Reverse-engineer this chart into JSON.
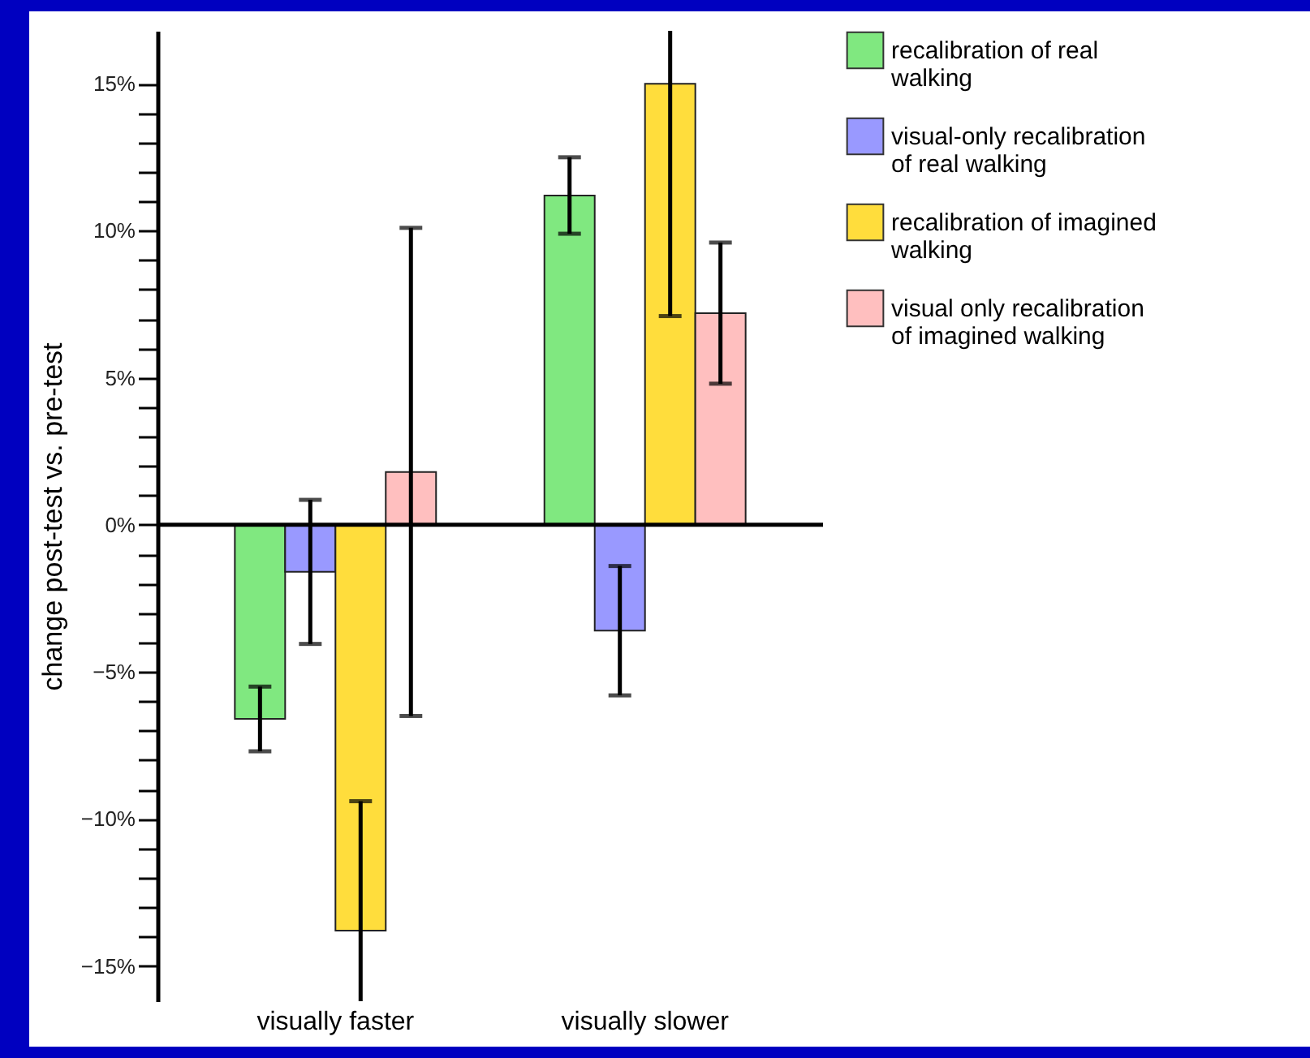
{
  "chart_data": {
    "type": "bar",
    "ylabel": "change post-test vs. pre-test",
    "categories": [
      "visually faster",
      "visually slower"
    ],
    "series": [
      {
        "name": "recalibration of real walking",
        "color": "#80e880",
        "values": [
          -6.6,
          11.2
        ],
        "errors": [
          1.1,
          1.3
        ]
      },
      {
        "name": "visual-only recalibration of real walking",
        "color": "#9999ff",
        "values": [
          -1.6,
          -3.6
        ],
        "errors": [
          2.45,
          2.2
        ]
      },
      {
        "name": "recalibration of imagined walking",
        "color": "#ffdd3c",
        "values": [
          -13.8,
          15
        ],
        "errors": [
          [
            -16.2,
            -9.4
          ],
          [
            7.1,
            16.8
          ]
        ]
      },
      {
        "name": "visual only recalibration of imagined walking",
        "color": "#ffbfbf",
        "values": [
          1.8,
          7.2
        ],
        "errors": [
          8.3,
          2.4
        ]
      }
    ],
    "ylim": [
      -16.2,
      16.8
    ],
    "yticks": [
      {
        "value": -15,
        "label": "−15%"
      },
      {
        "value": -14,
        "label": null
      },
      {
        "value": -13,
        "label": null
      },
      {
        "value": -12,
        "label": null
      },
      {
        "value": -11,
        "label": null
      },
      {
        "value": -10,
        "label": "−10%"
      },
      {
        "value": -9,
        "label": null
      },
      {
        "value": -8,
        "label": null
      },
      {
        "value": -7,
        "label": null
      },
      {
        "value": -6,
        "label": null
      },
      {
        "value": -5,
        "label": "−5%"
      },
      {
        "value": -4,
        "label": null
      },
      {
        "value": -3,
        "label": null
      },
      {
        "value": -2,
        "label": null
      },
      {
        "value": -1,
        "label": null
      },
      {
        "value": 0,
        "label": "0%"
      },
      {
        "value": 1,
        "label": null
      },
      {
        "value": 2,
        "label": null
      },
      {
        "value": 3,
        "label": null
      },
      {
        "value": 4,
        "label": null
      },
      {
        "value": 5,
        "label": "5%"
      },
      {
        "value": 6,
        "label": null
      },
      {
        "value": 7,
        "label": null
      },
      {
        "value": 8,
        "label": null
      },
      {
        "value": 9,
        "label": null
      },
      {
        "value": 10,
        "label": "10%"
      },
      {
        "value": 11,
        "label": null
      },
      {
        "value": 12,
        "label": null
      },
      {
        "value": 13,
        "label": null
      },
      {
        "value": 14,
        "label": null
      },
      {
        "value": 15,
        "label": "15%"
      }
    ],
    "legend": "right"
  }
}
